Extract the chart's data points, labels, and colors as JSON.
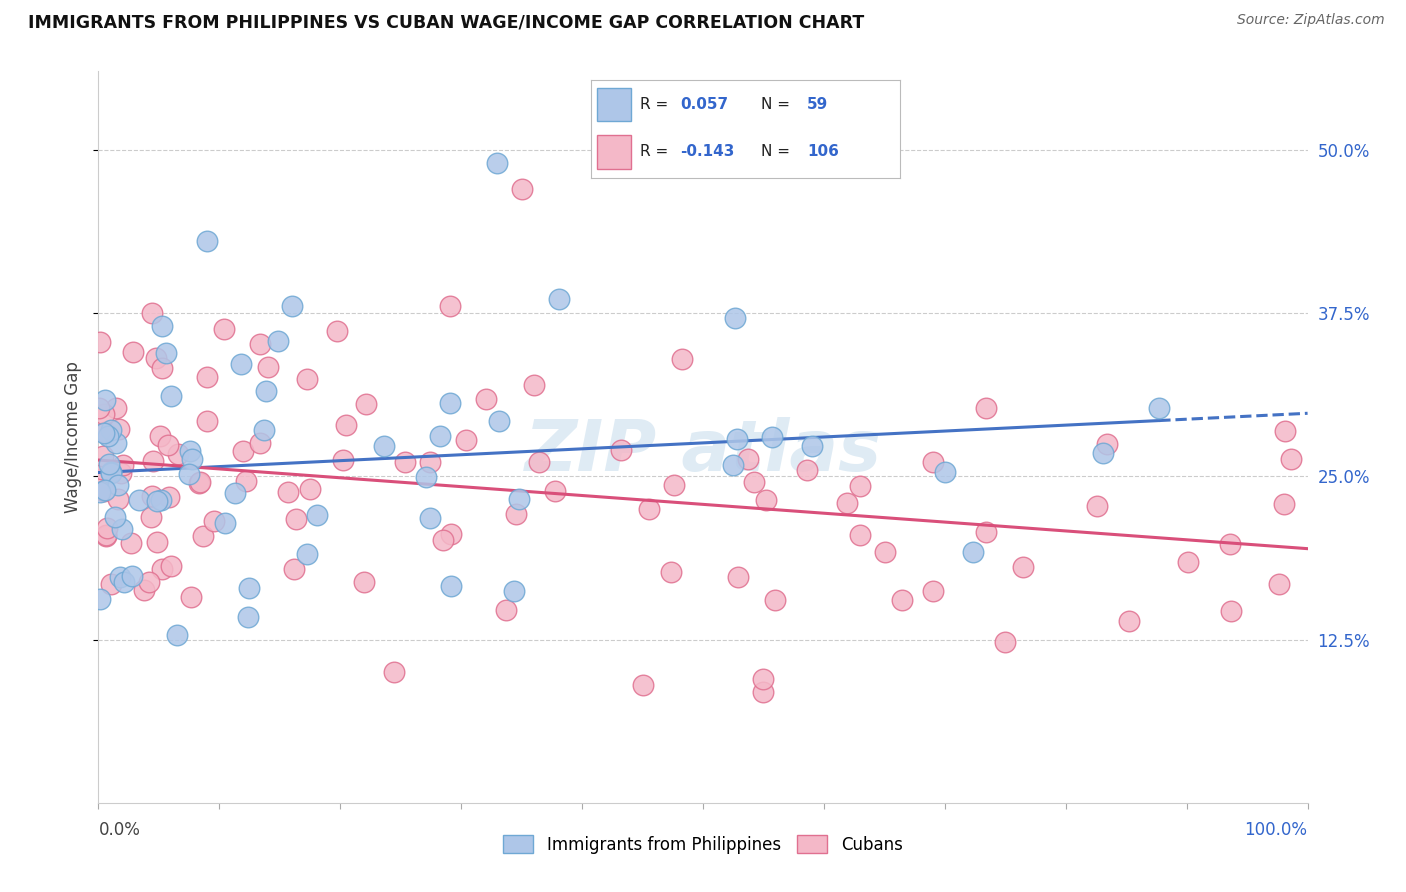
{
  "title": "IMMIGRANTS FROM PHILIPPINES VS CUBAN WAGE/INCOME GAP CORRELATION CHART",
  "source": "Source: ZipAtlas.com",
  "ylabel": "Wage/Income Gap",
  "background_color": "#ffffff",
  "grid_color": "#cccccc",
  "philippines_color": "#aec6e8",
  "philippines_edge_color": "#6fa8d4",
  "cuban_color": "#f4b8c8",
  "cuban_edge_color": "#e07090",
  "philippines_line_color": "#4472c4",
  "cuban_line_color": "#d94f7a",
  "r_philippines": 0.057,
  "n_philippines": 59,
  "r_cuban": -0.143,
  "n_cuban": 106,
  "xlim": [
    0.0,
    1.0
  ],
  "ylim": [
    0.0,
    0.56
  ],
  "yticks": [
    0.125,
    0.25,
    0.375,
    0.5
  ],
  "ytick_labels": [
    "12.5%",
    "25.0%",
    "37.5%",
    "50.0%"
  ],
  "xtick_labels": [
    "0.0%",
    "100.0%"
  ],
  "watermark_text": "ZIP atlas",
  "legend_r_color": "#3366cc",
  "legend_labels": [
    "Immigrants from Philippines",
    "Cubans"
  ]
}
